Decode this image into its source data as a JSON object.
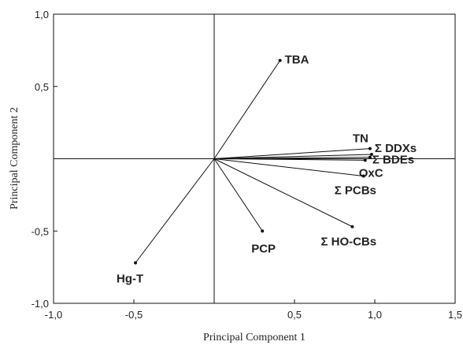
{
  "chart_data": {
    "type": "scatter",
    "subtype": "pca-loading-vectors",
    "xlabel": "Principal Component 1",
    "ylabel": "Principal Component 2",
    "xlim": [
      -1.0,
      1.5
    ],
    "ylim": [
      -1.0,
      1.0
    ],
    "x_ticks": [
      -1.0,
      -0.5,
      0.5,
      1.0,
      1.5
    ],
    "y_ticks": [
      1.0,
      0.5,
      -0.5,
      -1.0
    ],
    "x_tick_labels": [
      "-1,0",
      "-0,5",
      "0,5",
      "1,0",
      "1,5"
    ],
    "y_tick_labels": [
      "1,0",
      "0,5",
      "-0,5",
      "-1,0"
    ],
    "grid": false,
    "vectors": [
      {
        "name": "TBA",
        "label": "TBA",
        "x": 0.41,
        "y": 0.68
      },
      {
        "name": "TN",
        "label": "TN",
        "x": 0.97,
        "y": 0.07
      },
      {
        "name": "DDXs",
        "label": "Σ DDXs",
        "x": 0.98,
        "y": 0.03
      },
      {
        "name": "BDEs",
        "label": "Σ BDEs",
        "x": 0.97,
        "y": 0.01
      },
      {
        "name": "OxC",
        "label": "OxC",
        "x": 0.94,
        "y": -0.01
      },
      {
        "name": "PCBs",
        "label": "Σ PCBs",
        "x": 0.93,
        "y": -0.12
      },
      {
        "name": "HO-CBs",
        "label": "Σ HO-CBs",
        "x": 0.86,
        "y": -0.47
      },
      {
        "name": "PCP",
        "label": "PCP",
        "x": 0.3,
        "y": -0.5
      },
      {
        "name": "Hg-T",
        "label": "Hg-T",
        "x": -0.49,
        "y": -0.72
      }
    ]
  }
}
